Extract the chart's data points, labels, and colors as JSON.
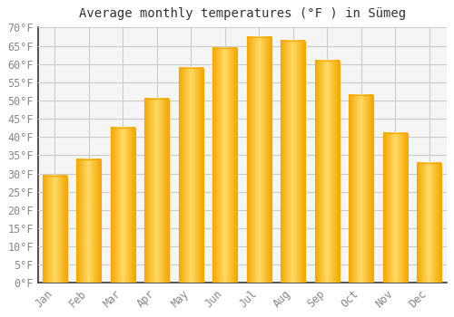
{
  "title": "Average monthly temperatures (°F ) in Sümeg",
  "months": [
    "Jan",
    "Feb",
    "Mar",
    "Apr",
    "May",
    "Jun",
    "Jul",
    "Aug",
    "Sep",
    "Oct",
    "Nov",
    "Dec"
  ],
  "values": [
    29.5,
    34.0,
    42.5,
    50.5,
    59.0,
    64.5,
    67.5,
    66.5,
    61.0,
    51.5,
    41.0,
    33.0
  ],
  "bar_color_center": "#FFD966",
  "bar_color_edge": "#F5A800",
  "background_color": "#FFFFFF",
  "plot_bg_color": "#F5F5F5",
  "grid_color": "#CCCCCC",
  "title_color": "#333333",
  "tick_label_color": "#888888",
  "axis_color": "#333333",
  "ylim": [
    0,
    70
  ],
  "ytick_step": 5,
  "ylabel_suffix": "°F",
  "title_fontsize": 10,
  "tick_fontsize": 8.5
}
